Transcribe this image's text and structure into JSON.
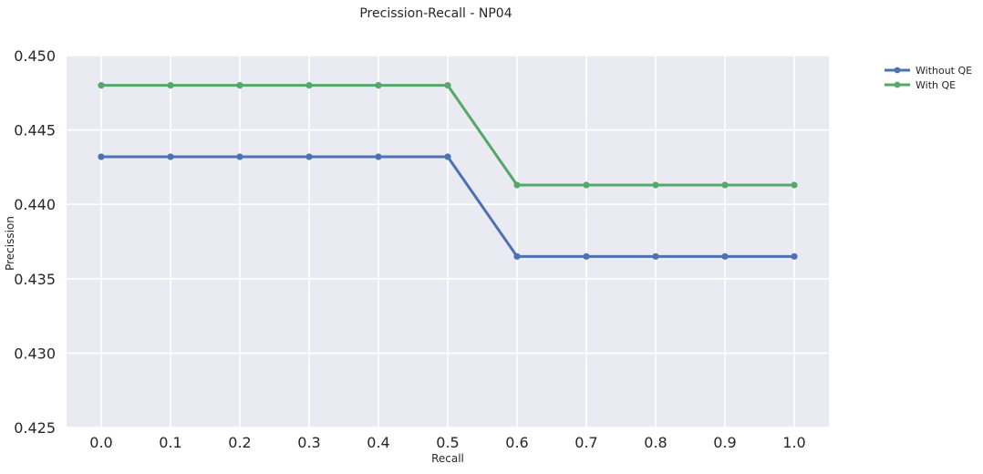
{
  "chart_data": {
    "type": "line",
    "title": "Precission-Recall - NP04",
    "xlabel": "Recall",
    "ylabel": "Precission",
    "x": [
      0.0,
      0.1,
      0.2,
      0.3,
      0.4,
      0.5,
      0.6,
      0.7,
      0.8,
      0.9,
      1.0
    ],
    "xticks": [
      "0.0",
      "0.1",
      "0.2",
      "0.3",
      "0.4",
      "0.5",
      "0.6",
      "0.7",
      "0.8",
      "0.9",
      "1.0"
    ],
    "xlim": [
      -0.05,
      1.05
    ],
    "ylim": [
      0.425,
      0.45
    ],
    "yticks": [
      "0.425",
      "0.430",
      "0.435",
      "0.440",
      "0.445",
      "0.450"
    ],
    "grid": true,
    "legend_position": "outside-top-right",
    "series": [
      {
        "name": "Without QE",
        "color": "#4c72b0",
        "values": [
          0.4432,
          0.4432,
          0.4432,
          0.4432,
          0.4432,
          0.4432,
          0.4365,
          0.4365,
          0.4365,
          0.4365,
          0.4365
        ]
      },
      {
        "name": "With QE",
        "color": "#55a868",
        "values": [
          0.448,
          0.448,
          0.448,
          0.448,
          0.448,
          0.448,
          0.4413,
          0.4413,
          0.4413,
          0.4413,
          0.4413
        ]
      }
    ],
    "colors": {
      "plot_background": "#eaeaf2",
      "grid": "#ffffff",
      "text": "#262626"
    }
  }
}
